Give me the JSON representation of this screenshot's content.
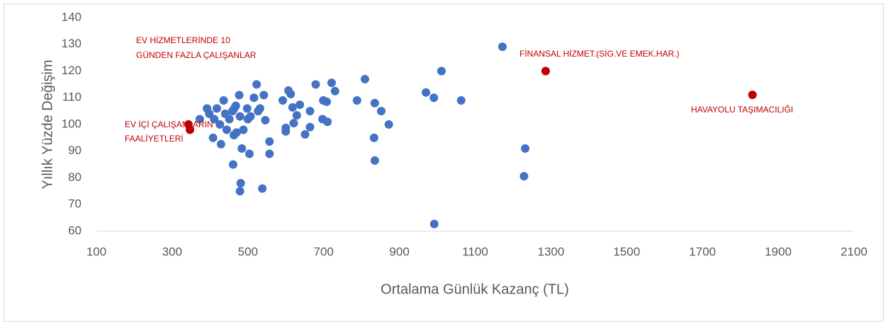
{
  "chart_data": {
    "type": "scatter",
    "xlabel": "Ortalama Günlük Kazanç (TL)",
    "ylabel": "Yıllık Yüzde Değişim",
    "xlim": [
      100,
      2100
    ],
    "xticks": [
      100,
      300,
      500,
      700,
      900,
      1100,
      1300,
      1500,
      1700,
      1900,
      2100
    ],
    "ylim": [
      60,
      140
    ],
    "yticks": [
      60,
      70,
      80,
      90,
      100,
      110,
      120,
      130,
      140
    ],
    "series": [
      {
        "color": "#4472c4",
        "x": [
          1172,
          1011,
          970,
          991,
          1063,
          809,
          788,
          835,
          852,
          872,
          833,
          835,
          1232,
          1229,
          992,
          373,
          392,
          398,
          411,
          408,
          418,
          426,
          429,
          436,
          440,
          444,
          451,
          459,
          463,
          464,
          468,
          470,
          477,
          479,
          484,
          488,
          481,
          479,
          461,
          498,
          500,
          504,
          507,
          516,
          523,
          527,
          532,
          538,
          542,
          546,
          557,
          557,
          592,
          600,
          600,
          607,
          613,
          618,
          621,
          629,
          637,
          651,
          664,
          664,
          679,
          697,
          699,
          708,
          710,
          721,
          730
        ],
        "values": [
          129.1,
          120,
          112,
          110,
          109,
          117,
          109,
          108,
          105,
          100,
          95,
          86.5,
          91,
          80.6,
          62.7,
          102,
          106,
          104,
          102,
          95,
          106,
          100,
          92.6,
          109,
          104,
          98,
          102,
          105,
          96,
          106,
          107,
          97,
          111,
          103,
          91,
          98,
          78,
          75,
          85,
          106,
          102,
          89,
          103,
          110,
          115,
          105,
          106,
          76,
          111,
          101.6,
          93.6,
          89,
          109,
          97.4,
          98.7,
          112.7,
          111.4,
          106.4,
          100.5,
          103.4,
          107.4,
          96.3,
          105,
          99,
          115,
          102,
          109,
          108.5,
          101,
          115.6,
          112.5
        ]
      },
      {
        "color": "#c00000",
        "x": [
          343,
          347,
          1286,
          1832
        ],
        "values": [
          100,
          98,
          120,
          111.1
        ]
      }
    ],
    "annotations": [
      "EV HİZMETLERİNDE 10",
      "GÜNDEN FAZLA ÇALIŞANLAR",
      "EV İÇİ ÇALIŞANLARIN",
      "FAALİYETLERİ",
      "FİNANSAL HİZMET.(SİG.VE EMEK.HAR.)",
      "HAVAYOLU TAŞIMACILIĞI"
    ]
  }
}
